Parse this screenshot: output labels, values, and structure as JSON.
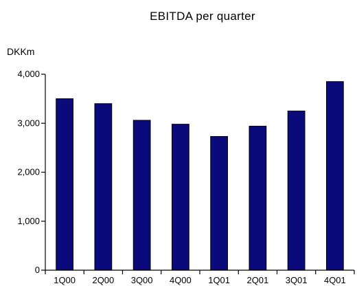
{
  "chart_data": {
    "type": "bar",
    "title": "EBITDA per quarter",
    "ylabel": "DKKm",
    "xlabel": "",
    "categories": [
      "1Q00",
      "2Q00",
      "3Q00",
      "4Q00",
      "1Q01",
      "2Q01",
      "3Q01",
      "4Q01"
    ],
    "values": [
      3500,
      3400,
      3060,
      2980,
      2730,
      2940,
      3250,
      3850
    ],
    "ylim": [
      0,
      4000
    ],
    "yticks": [
      0,
      1000,
      2000,
      3000,
      4000
    ],
    "ytick_labels": [
      "0",
      "1,000",
      "2,000",
      "3,000",
      "4,000"
    ],
    "bar_color": "#0a0a7a",
    "grid": false
  }
}
